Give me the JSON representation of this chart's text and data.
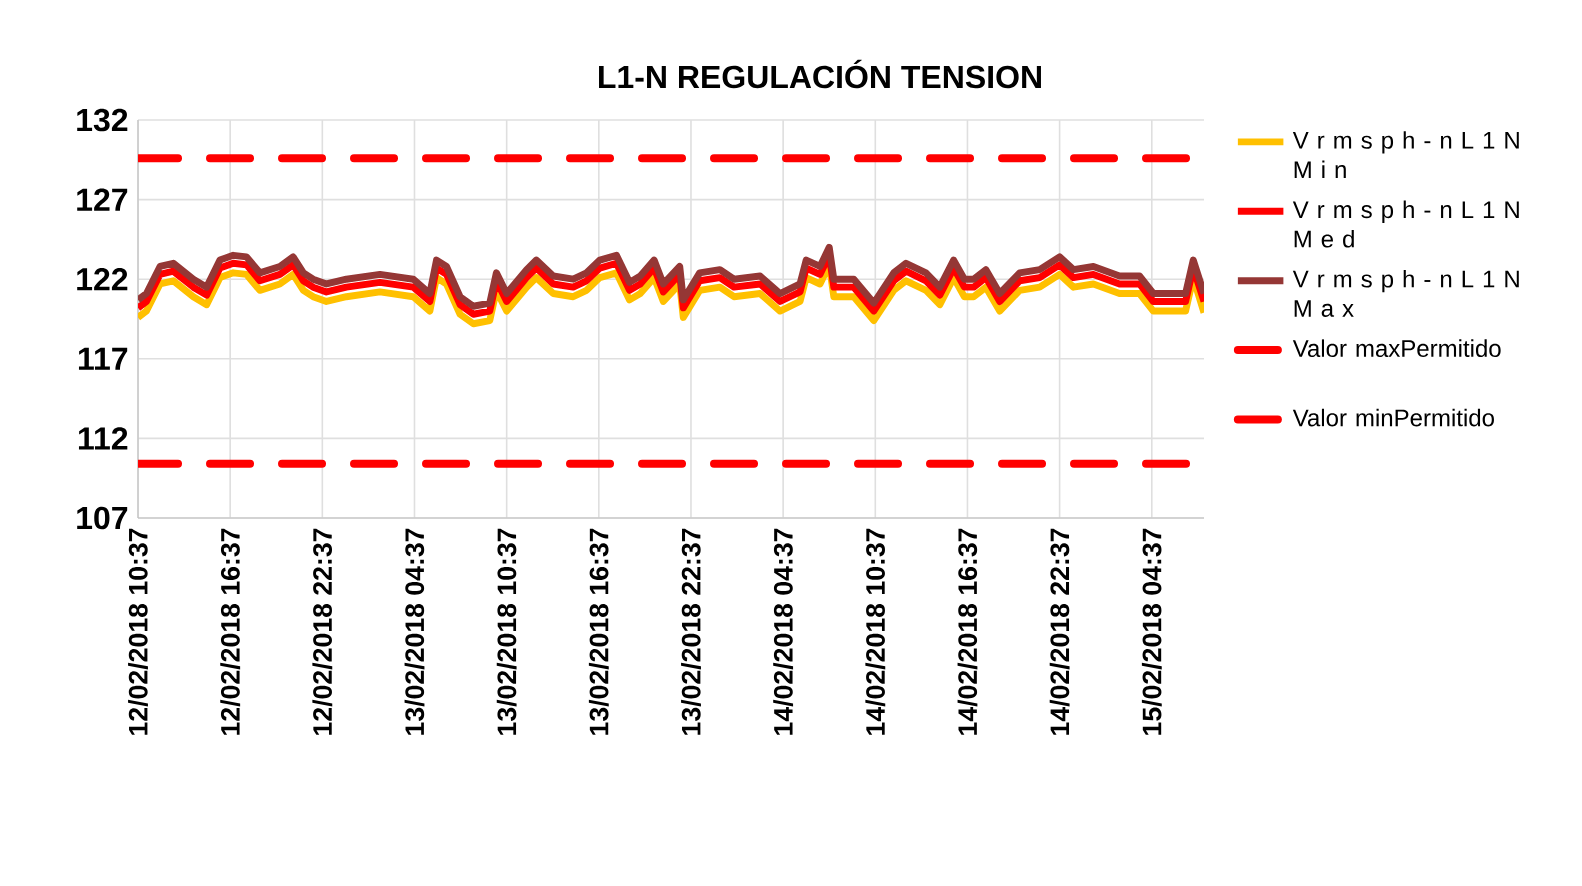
{
  "chart_data": {
    "type": "line",
    "title": "L1-N REGULACIÓN TENSION",
    "x": [
      "2018-02-12T10:37",
      "2018-02-12T11:10",
      "2018-02-12T12:03",
      "2018-02-12T12:55",
      "2018-02-12T14:13",
      "2018-02-12T15:05",
      "2018-02-12T15:57",
      "2018-02-12T16:49",
      "2018-02-12T17:41",
      "2018-02-12T18:33",
      "2018-02-12T19:51",
      "2018-02-12T20:43",
      "2018-02-12T21:23",
      "2018-02-12T22:01",
      "2018-02-12T22:53",
      "2018-02-13T00:11",
      "2018-02-13T02:22",
      "2018-02-13T04:32",
      "2018-02-13T05:37",
      "2018-02-13T06:03",
      "2018-02-13T06:42",
      "2018-02-13T07:35",
      "2018-02-13T08:27",
      "2018-02-13T09:31",
      "2018-02-13T09:57",
      "2018-02-13T10:37",
      "2018-02-13T11:55",
      "2018-02-13T12:33",
      "2018-02-13T13:39",
      "2018-02-13T14:57",
      "2018-02-13T15:49",
      "2018-02-13T16:41",
      "2018-02-13T17:46",
      "2018-02-13T18:37",
      "2018-02-13T19:19",
      "2018-02-13T20:13",
      "2018-02-13T20:49",
      "2018-02-13T21:53",
      "2018-02-13T22:07",
      "2018-02-13T23:11",
      "2018-02-14T00:30",
      "2018-02-14T01:25",
      "2018-02-14T03:07",
      "2018-02-14T04:25",
      "2018-02-14T05:43",
      "2018-02-14T06:07",
      "2018-02-14T07:01",
      "2018-02-14T07:37",
      "2018-02-14T07:55",
      "2018-02-14T09:13",
      "2018-02-14T10:31",
      "2018-02-14T11:49",
      "2018-02-14T12:37",
      "2018-02-14T13:55",
      "2018-02-14T14:49",
      "2018-02-14T15:43",
      "2018-02-14T16:25",
      "2018-02-14T17:01",
      "2018-02-14T17:49",
      "2018-02-14T18:43",
      "2018-02-14T20:01",
      "2018-02-14T21:19",
      "2018-02-14T22:37",
      "2018-02-14T23:31",
      "2018-02-15T00:49",
      "2018-02-15T02:31",
      "2018-02-15T03:49",
      "2018-02-15T04:43",
      "2018-02-15T06:01",
      "2018-02-15T06:49",
      "2018-02-15T07:19",
      "2018-02-15T08:01"
    ],
    "series": [
      {
        "name": "V r m s  p h - n L 1 N  M i n",
        "color": "#ffc000",
        "values": [
          119.6,
          120,
          121.7,
          121.9,
          120.9,
          120.4,
          122.1,
          122.4,
          122.3,
          121.3,
          121.7,
          122.3,
          121.3,
          120.9,
          120.6,
          120.9,
          121.2,
          120.9,
          120,
          122.1,
          121.7,
          119.8,
          119.2,
          119.4,
          121.3,
          120,
          121.5,
          122.1,
          121.1,
          120.9,
          121.3,
          122.1,
          122.4,
          120.7,
          121.1,
          122.1,
          120.6,
          121.7,
          119.6,
          121.3,
          121.5,
          120.9,
          121.1,
          120,
          120.6,
          122.1,
          121.7,
          122.9,
          120.9,
          120.9,
          119.4,
          121.3,
          121.9,
          121.3,
          120.4,
          122.1,
          120.9,
          120.9,
          121.5,
          120,
          121.3,
          121.5,
          122.3,
          121.5,
          121.7,
          121.1,
          121.1,
          120,
          120,
          120,
          122.1,
          119.9
        ]
      },
      {
        "name": "V r m s  p h - n L 1 N  M e d",
        "color": "#ff0000",
        "values": [
          120.2,
          120.6,
          122.3,
          122.5,
          121.5,
          121,
          122.7,
          123,
          122.9,
          121.9,
          122.3,
          122.9,
          121.9,
          121.5,
          121.2,
          121.5,
          121.8,
          121.5,
          120.6,
          122.7,
          122.3,
          120.4,
          119.8,
          120,
          121.9,
          120.6,
          122.1,
          122.7,
          121.7,
          121.5,
          121.9,
          122.7,
          123,
          121.3,
          121.7,
          122.7,
          121.2,
          122.3,
          120.2,
          121.9,
          122.1,
          121.5,
          121.7,
          120.6,
          121.2,
          122.7,
          122.3,
          123.5,
          121.5,
          121.5,
          120,
          121.9,
          122.5,
          121.9,
          121,
          122.7,
          121.5,
          121.5,
          122.1,
          120.6,
          121.9,
          122.1,
          122.9,
          122.1,
          122.3,
          121.7,
          121.7,
          120.6,
          120.6,
          120.6,
          122.7,
          120.6
        ]
      },
      {
        "name": "V r m s  p h - n L 1 N  M a x",
        "color": "#953735",
        "values": [
          120.7,
          121.1,
          122.8,
          123,
          122,
          121.5,
          123.2,
          123.5,
          123.4,
          122.4,
          122.8,
          123.4,
          122.4,
          122,
          121.7,
          122,
          122.3,
          122,
          121.1,
          123.2,
          122.8,
          120.9,
          120.3,
          120.5,
          122.4,
          121.1,
          122.6,
          123.2,
          122.2,
          122,
          122.4,
          123.2,
          123.5,
          121.8,
          122.2,
          123.2,
          121.7,
          122.8,
          120.7,
          122.4,
          122.6,
          122,
          122.2,
          121.1,
          121.7,
          123.2,
          122.8,
          124,
          122,
          122,
          120.5,
          122.4,
          123,
          122.4,
          121.5,
          123.2,
          122,
          122,
          122.6,
          121.1,
          122.4,
          122.6,
          123.4,
          122.6,
          122.8,
          122.2,
          122.2,
          121.1,
          121.1,
          121.1,
          123.2,
          121.1
        ]
      },
      {
        "name": "Valor maxPermitido",
        "color": "#ff0000",
        "line_style": "dashed",
        "x": [
          "2018-02-12T10:37",
          "2018-02-15T08:01"
        ],
        "values": [
          129.6,
          129.6
        ]
      },
      {
        "name": "Valor minPermitido",
        "color": "#ff0000",
        "line_style": "dashed",
        "x": [
          "2018-02-12T10:37",
          "2018-02-15T08:01"
        ],
        "values": [
          110.4,
          110.4
        ]
      }
    ],
    "xlim": [
      "2018-02-12T10:37",
      "2018-02-15T08:01"
    ],
    "xticks": [
      {
        "value": "2018-02-12T10:37",
        "label": "12/02/2018 10:37"
      },
      {
        "value": "2018-02-12T16:37",
        "label": "12/02/2018 16:37"
      },
      {
        "value": "2018-02-12T22:37",
        "label": "12/02/2018 22:37"
      },
      {
        "value": "2018-02-13T04:37",
        "label": "13/02/2018 04:37"
      },
      {
        "value": "2018-02-13T10:37",
        "label": "13/02/2018 10:37"
      },
      {
        "value": "2018-02-13T16:37",
        "label": "13/02/2018 16:37"
      },
      {
        "value": "2018-02-13T22:37",
        "label": "13/02/2018 22:37"
      },
      {
        "value": "2018-02-14T04:37",
        "label": "14/02/2018 04:37"
      },
      {
        "value": "2018-02-14T10:37",
        "label": "14/02/2018 10:37"
      },
      {
        "value": "2018-02-14T16:37",
        "label": "14/02/2018 16:37"
      },
      {
        "value": "2018-02-14T22:37",
        "label": "14/02/2018 22:37"
      },
      {
        "value": "2018-02-15T04:37",
        "label": "15/02/2018 04:37"
      }
    ],
    "ylim": [
      107,
      132
    ],
    "yticks": [
      107,
      112,
      117,
      122,
      127,
      132
    ],
    "grid": true,
    "legend": "right"
  }
}
